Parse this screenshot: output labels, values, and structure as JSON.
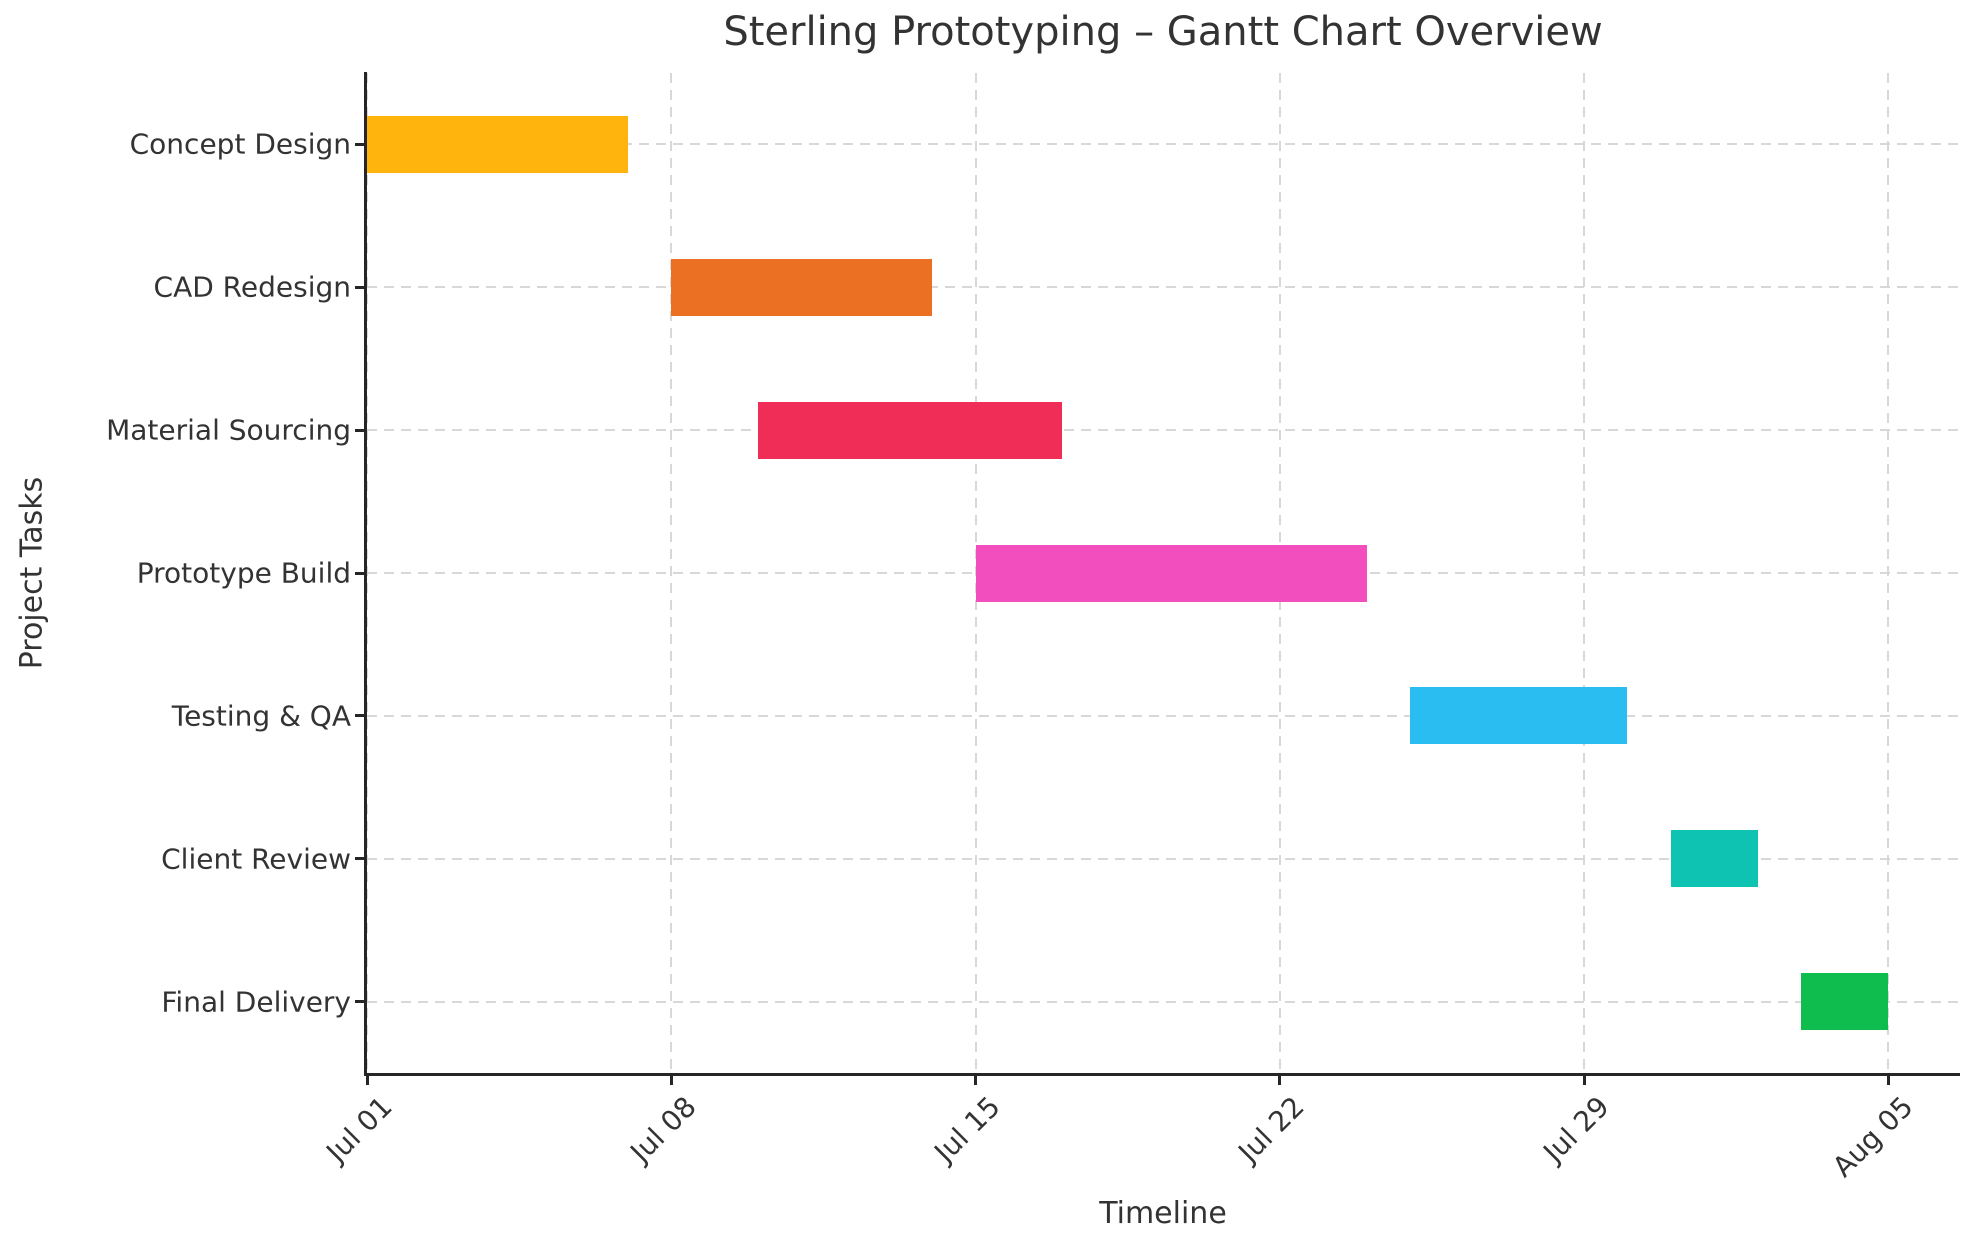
{
  "chart_data": {
    "type": "gantt",
    "title": "Sterling Prototyping – Gantt Chart Overview",
    "xlabel": "Timeline",
    "ylabel": "Project Tasks",
    "x_domain_days": [
      0,
      36.65
    ],
    "x_ticks": [
      {
        "day": 0,
        "label": "Jul 01"
      },
      {
        "day": 7,
        "label": "Jul 08"
      },
      {
        "day": 14,
        "label": "Jul 15"
      },
      {
        "day": 21,
        "label": "Jul 22"
      },
      {
        "day": 28,
        "label": "Jul 29"
      },
      {
        "day": 35,
        "label": "Aug 05"
      }
    ],
    "tasks": [
      {
        "name": "Concept Design",
        "start_date": "Jul 01",
        "end_date": "Jul 07",
        "start_day": 0,
        "duration_days": 6,
        "color": "#FFB30D"
      },
      {
        "name": "CAD Redesign",
        "start_date": "Jul 08",
        "end_date": "Jul 14",
        "start_day": 7,
        "duration_days": 6,
        "color": "#EC7023"
      },
      {
        "name": "Material Sourcing",
        "start_date": "Jul 10",
        "end_date": "Jul 17",
        "start_day": 9,
        "duration_days": 7,
        "color": "#EF2D56"
      },
      {
        "name": "Prototype Build",
        "start_date": "Jul 15",
        "end_date": "Jul 24",
        "start_day": 14,
        "duration_days": 9,
        "color": "#F24EBE"
      },
      {
        "name": "Testing & QA",
        "start_date": "Jul 25",
        "end_date": "Jul 30",
        "start_day": 24,
        "duration_days": 5,
        "color": "#29BDF2"
      },
      {
        "name": "Client Review",
        "start_date": "Jul 31",
        "end_date": "Aug 02",
        "start_day": 30,
        "duration_days": 2,
        "color": "#0EC3B1"
      },
      {
        "name": "Final Delivery",
        "start_date": "Aug 03",
        "end_date": "Aug 05",
        "start_day": 33,
        "duration_days": 2,
        "color": "#0FBD4F"
      }
    ],
    "grid": {
      "style": "dashed",
      "color": "#d8d8d8"
    },
    "axis_color": "#262626",
    "text_color": "#333333",
    "background": "#ffffff",
    "legend_position": "none"
  }
}
